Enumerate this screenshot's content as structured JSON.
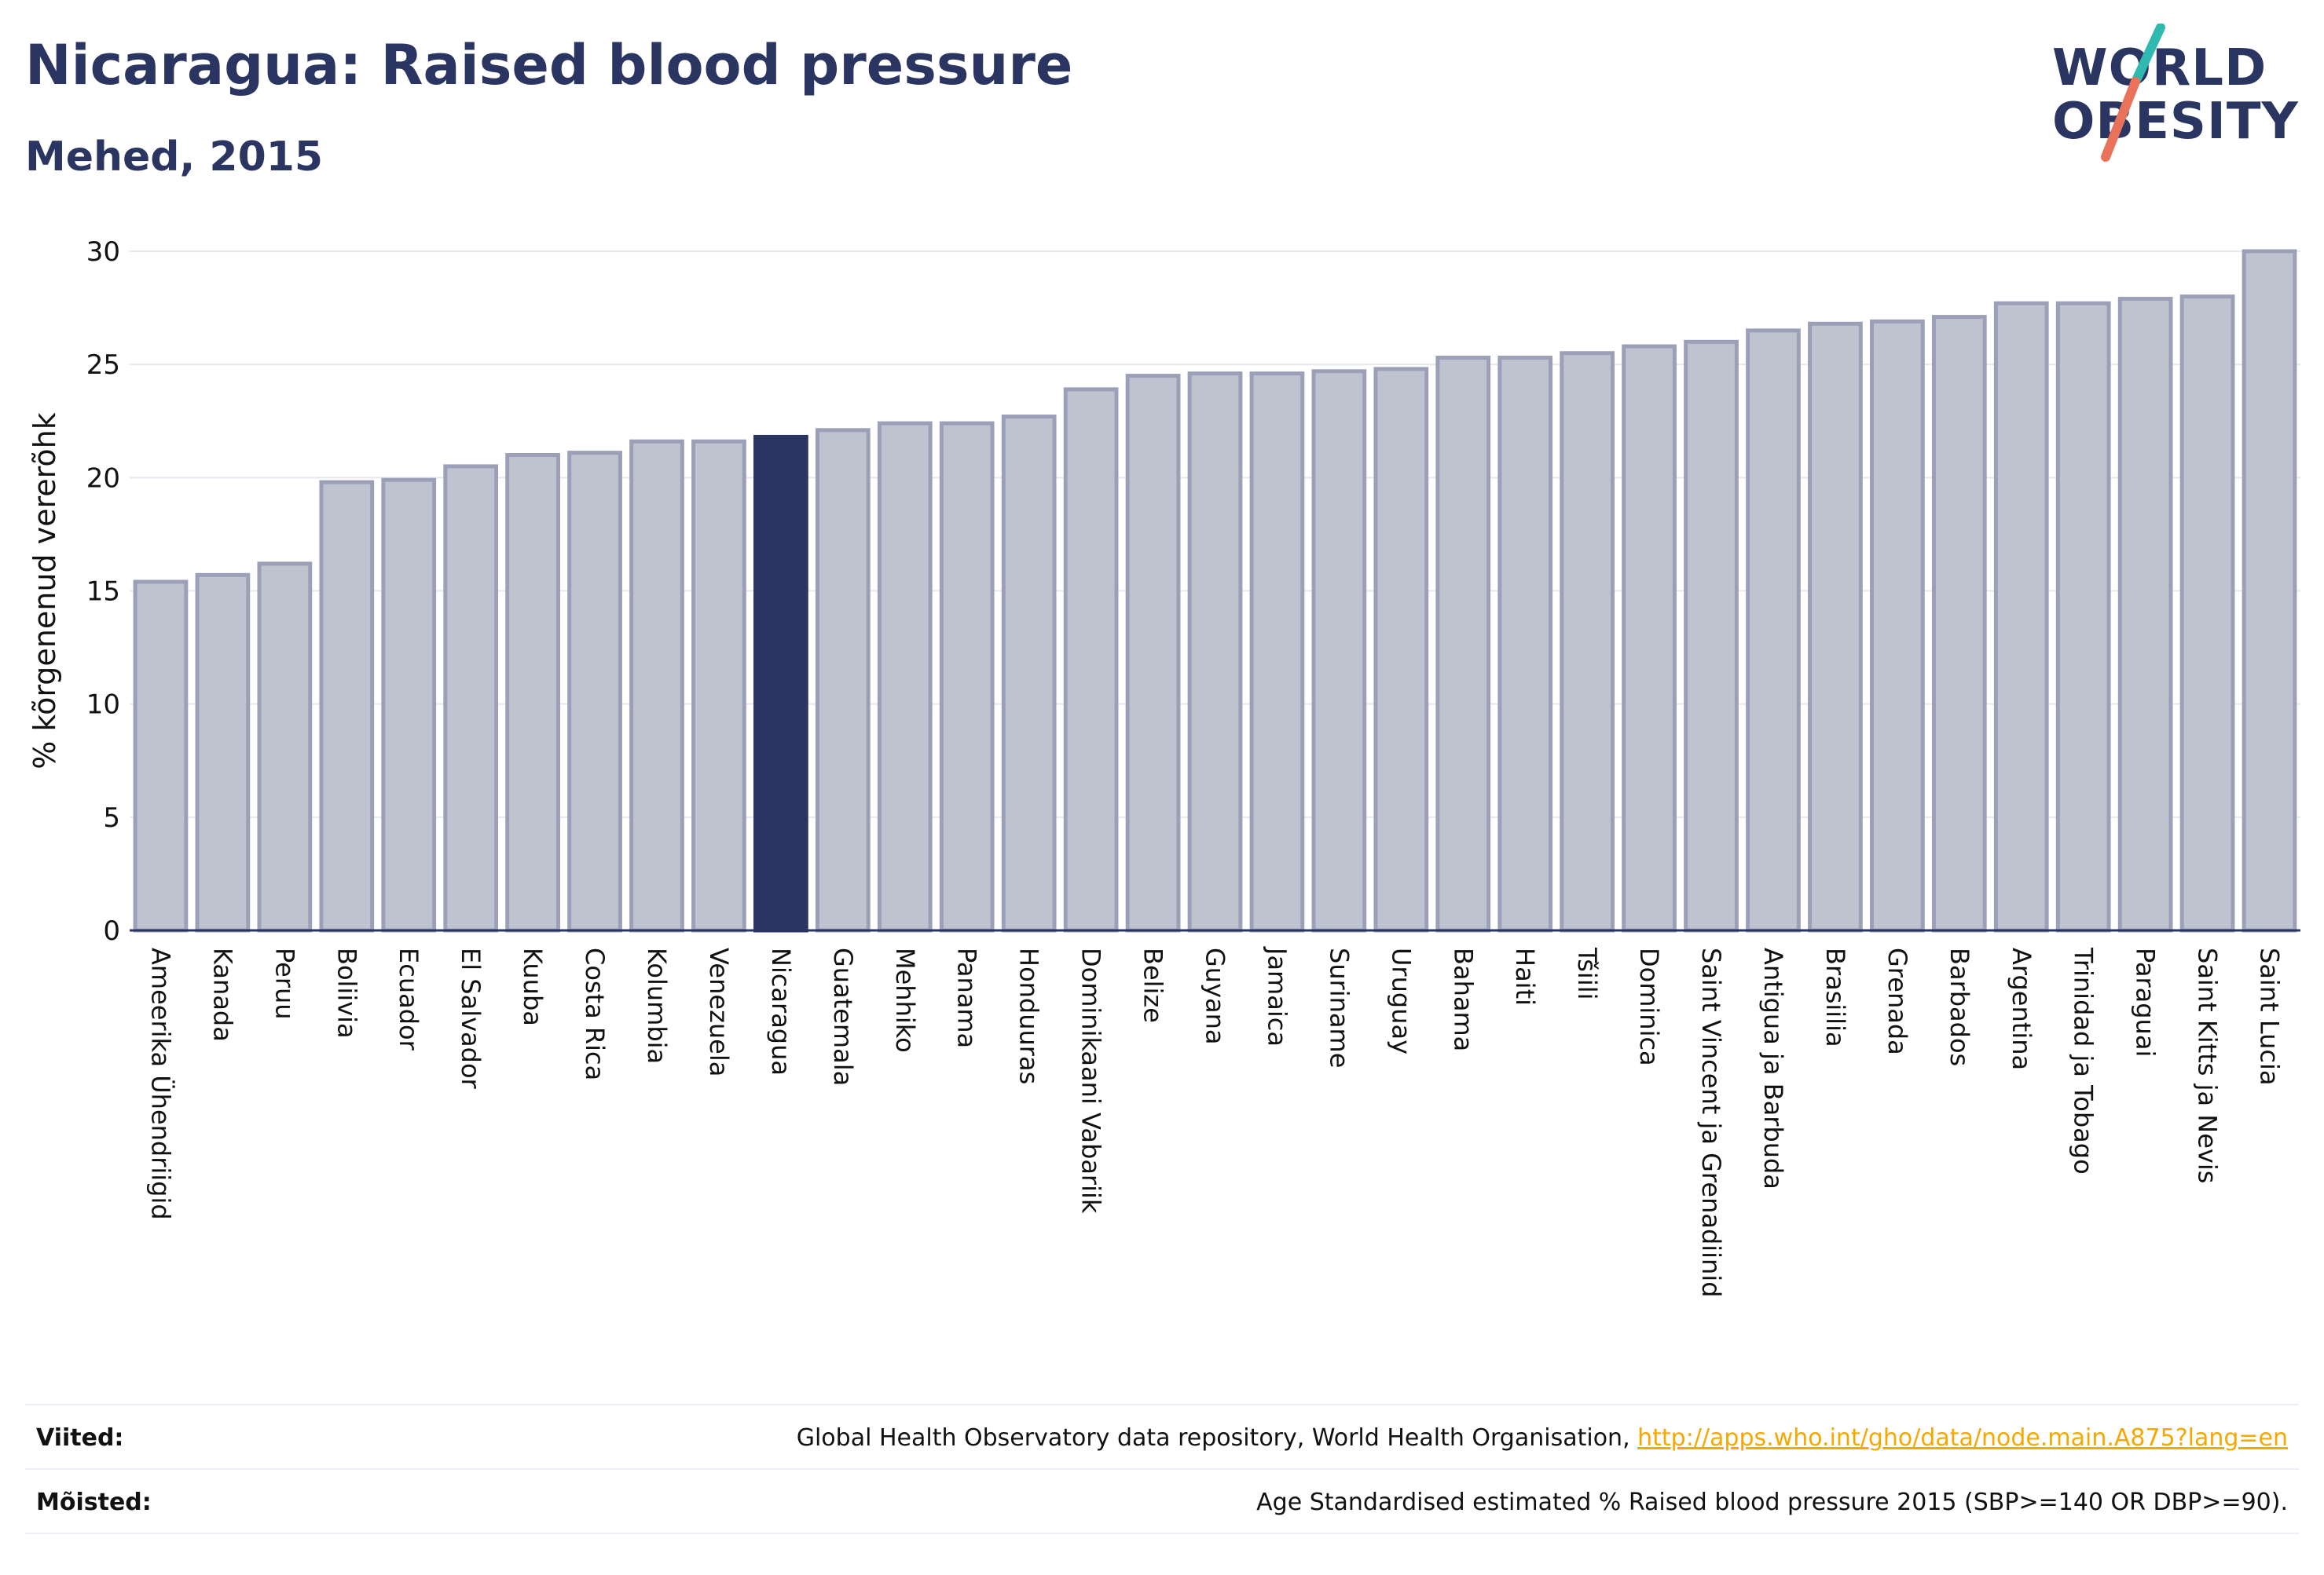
{
  "header": {
    "title": "Nicaragua: Raised blood pressure",
    "subtitle": "Mehed, 2015"
  },
  "logo": {
    "line1": "WORLD",
    "line2": "OBESITY",
    "accent_colors": [
      "#2fb9b0",
      "#e8735a"
    ]
  },
  "colors": {
    "bar_default": "#bfc3d0",
    "bar_border": "#9ba0b8",
    "bar_highlight": "#2a3562",
    "text_primary": "#2a3562",
    "link": "#f5a800"
  },
  "chart_data": {
    "type": "bar",
    "ylabel": "% kõrgenenud vererõhk",
    "ylim": [
      0,
      30
    ],
    "yticks": [
      0,
      5,
      10,
      15,
      20,
      25,
      30
    ],
    "grid": true,
    "highlight": "Nicaragua",
    "categories": [
      "Ameerika Ühendriigid",
      "Kanada",
      "Peruu",
      "Boliivia",
      "Ecuador",
      "El Salvador",
      "Kuuba",
      "Costa Rica",
      "Kolumbia",
      "Venezuela",
      "Nicaragua",
      "Guatemala",
      "Mehhiko",
      "Panama",
      "Honduuras",
      "Dominikaani Vabariik",
      "Belize",
      "Guyana",
      "Jamaica",
      "Suriname",
      "Uruguay",
      "Bahama",
      "Haiti",
      "Tšiili",
      "Dominica",
      "Saint Vincent ja Grenadiinid",
      "Antigua ja Barbuda",
      "Brasiilia",
      "Grenada",
      "Barbados",
      "Argentina",
      "Trinidad ja Tobago",
      "Paraguai",
      "Saint Kitts ja Nevis",
      "Saint Lucia"
    ],
    "values": [
      15.4,
      15.7,
      16.2,
      19.8,
      19.9,
      20.5,
      21.0,
      21.1,
      21.6,
      21.6,
      21.8,
      22.1,
      22.4,
      22.4,
      22.7,
      23.9,
      24.5,
      24.6,
      24.6,
      24.7,
      24.8,
      25.3,
      25.3,
      25.5,
      25.8,
      26.0,
      26.5,
      26.8,
      26.9,
      27.1,
      27.7,
      27.7,
      27.9,
      28.0,
      30.0
    ]
  },
  "footer": {
    "sources_label": "Viited:",
    "sources_text": "Global Health Observatory data repository, World Health Organisation, ",
    "sources_link": "http://apps.who.int/gho/data/node.main.A875?lang=en",
    "definitions_label": "Mõisted:",
    "definitions_text": "Age Standardised estimated % Raised blood pressure 2015 (SBP>=140 OR DBP>=90)."
  }
}
